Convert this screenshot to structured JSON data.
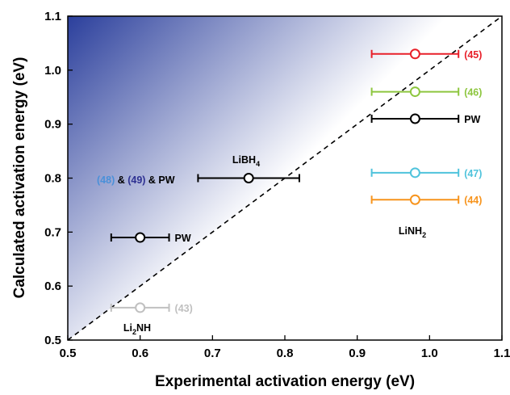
{
  "chart_data": {
    "type": "scatter",
    "xlabel": "Experimental activation energy (eV)",
    "ylabel": "Calculated activation energy (eV)",
    "xlim": [
      0.5,
      1.1
    ],
    "ylim": [
      0.5,
      1.1
    ],
    "x_ticks": [
      "0.5",
      "0.6",
      "0.7",
      "0.8",
      "0.9",
      "1.0",
      "1.1"
    ],
    "y_ticks": [
      "0.5",
      "0.6",
      "0.7",
      "0.8",
      "0.9",
      "1.0",
      "1.1"
    ],
    "grid": false,
    "reference_line": "y = x (dashed)",
    "shading": "blue gradient above the diagonal",
    "points": [
      {
        "x": 0.98,
        "y": 1.03,
        "xerr": [
          0.92,
          1.04
        ],
        "color": "#e8202a",
        "label": "(45)"
      },
      {
        "x": 0.98,
        "y": 0.96,
        "xerr": [
          0.92,
          1.04
        ],
        "color": "#8dc63f",
        "label": "(46)"
      },
      {
        "x": 0.98,
        "y": 0.91,
        "xerr": [
          0.92,
          1.04
        ],
        "color": "#000000",
        "label": "PW"
      },
      {
        "x": 0.98,
        "y": 0.81,
        "xerr": [
          0.92,
          1.04
        ],
        "color": "#4fc3dc",
        "label": "(47)"
      },
      {
        "x": 0.98,
        "y": 0.76,
        "xerr": [
          0.92,
          1.04
        ],
        "color": "#f7941d",
        "label": "(44)"
      },
      {
        "x": 0.75,
        "y": 0.8,
        "xerr": [
          0.68,
          0.82
        ],
        "color": "#000000",
        "label": ""
      },
      {
        "x": 0.6,
        "y": 0.69,
        "xerr": [
          0.56,
          0.64
        ],
        "color": "#000000",
        "label": "PW"
      },
      {
        "x": 0.6,
        "y": 0.56,
        "xerr": [
          0.56,
          0.64
        ],
        "color": "#c0c0c0",
        "label": "(43)"
      }
    ],
    "annotations": {
      "libh4_refs": [
        {
          "text": "(48)",
          "color": "#4a90d9"
        },
        {
          "text": " & ",
          "color": "#000000"
        },
        {
          "text": "(49)",
          "color": "#2e3192"
        },
        {
          "text": " & PW",
          "color": "#000000"
        }
      ],
      "libh4": {
        "main": "LiBH",
        "sub": "4"
      },
      "linh2": {
        "main": "LiNH",
        "sub": "2"
      },
      "li2nh": {
        "pre": "Li",
        "sub": "2",
        "post": "NH"
      }
    },
    "colors": {
      "gradient_dark": "#2b3f9c",
      "gradient_light": "#ffffff"
    }
  }
}
